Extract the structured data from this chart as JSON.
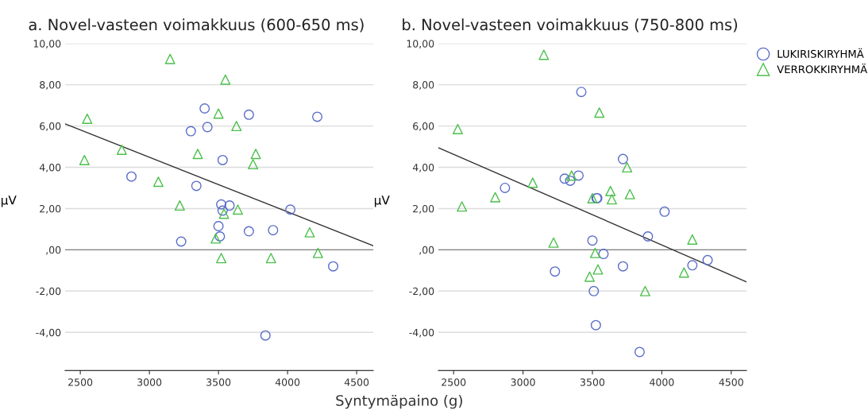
{
  "chart_data": [
    {
      "type": "scatter",
      "title": "a. Novel-vasteen voimakkuus (600-650 ms)",
      "xlabel": "Syntymäpaino (g)",
      "ylabel": "µV",
      "xlim": [
        2390,
        4620
      ],
      "xticks": [
        2500,
        3000,
        3500,
        4000,
        4500
      ],
      "ylim": [
        -5.85,
        10
      ],
      "yticks": [
        {
          "value": -4,
          "label": "-4,00"
        },
        {
          "value": -2,
          "label": "-2,00"
        },
        {
          "value": 0,
          "label": ",00"
        },
        {
          "value": 2,
          "label": "2,00"
        },
        {
          "value": 4,
          "label": "4,00"
        },
        {
          "value": 6,
          "label": "6,00"
        },
        {
          "value": 8,
          "label": "8,00"
        },
        {
          "value": 10,
          "label": "10,00"
        }
      ],
      "grid": "y",
      "ref_lines": [
        {
          "axis": "y",
          "value": 0,
          "color": "#7f7f7f"
        }
      ],
      "series": [
        {
          "color": "#5b6ec8",
          "marker": "circle",
          "x": [
            2870,
            3230,
            3300,
            3340,
            3400,
            3420,
            3500,
            3510,
            3520,
            3530,
            3530,
            3580,
            3720,
            3720,
            3895,
            4020,
            4215,
            4330,
            3840
          ],
          "values": [
            3.55,
            0.4,
            5.75,
            3.1,
            6.85,
            5.95,
            1.15,
            0.65,
            2.2,
            4.35,
            1.9,
            2.15,
            6.55,
            0.9,
            0.95,
            1.95,
            6.45,
            -0.8,
            -4.15
          ]
        },
        {
          "color": "#4cc04c",
          "marker": "triangle",
          "x": [
            2530,
            2550,
            2800,
            3065,
            3150,
            3220,
            3350,
            3480,
            3500,
            3520,
            3540,
            3550,
            3640,
            3630,
            3750,
            3770,
            3880,
            4160,
            4220
          ],
          "values": [
            4.35,
            6.35,
            4.85,
            3.3,
            9.25,
            2.15,
            4.65,
            0.55,
            6.6,
            -0.4,
            1.75,
            8.25,
            1.95,
            6.0,
            4.15,
            4.65,
            -0.4,
            0.85,
            -0.15
          ]
        },
        {
          "type": "line",
          "color": "#333333",
          "x": [
            2390,
            4620
          ],
          "values": [
            6.1,
            0.2
          ]
        }
      ]
    },
    {
      "type": "scatter",
      "title": "b. Novel-vasteen voimakkuus (750-800 ms)",
      "ylabel": "µV",
      "xlim": [
        2390,
        4610
      ],
      "xticks": [
        2500,
        3000,
        3500,
        4000,
        4500
      ],
      "ylim": [
        -5.85,
        10
      ],
      "yticks": [
        {
          "value": -4,
          "label": "-4,00"
        },
        {
          "value": -2,
          "label": "-2,00"
        },
        {
          "value": 0,
          "label": ",00"
        },
        {
          "value": 2,
          "label": "2,00"
        },
        {
          "value": 4,
          "label": "4,00"
        },
        {
          "value": 6,
          "label": "6,00"
        },
        {
          "value": 8,
          "label": "8,00"
        },
        {
          "value": 10,
          "label": "10,00"
        }
      ],
      "grid": "y",
      "legend": "top right",
      "ref_lines": [
        {
          "axis": "y",
          "value": 0,
          "color": "#7f7f7f"
        }
      ],
      "series": [
        {
          "name": "LUKIRISKIRYHMÄ",
          "color": "#5b6ec8",
          "marker": "circle",
          "x": [
            2870,
            3230,
            3300,
            3340,
            3400,
            3420,
            3500,
            3510,
            3525,
            3530,
            3535,
            3580,
            3720,
            3720,
            3900,
            4020,
            4220,
            4330,
            3840
          ],
          "values": [
            3.0,
            -1.05,
            3.45,
            3.35,
            3.6,
            7.65,
            0.45,
            -2.0,
            -3.65,
            2.5,
            2.5,
            -0.2,
            4.4,
            -0.8,
            0.65,
            1.85,
            -0.75,
            -0.5,
            -4.95
          ]
        },
        {
          "name": "VERROKKIRYHMÄ",
          "color": "#4cc04c",
          "marker": "triangle",
          "x": [
            2530,
            2560,
            2800,
            3070,
            3150,
            3220,
            3350,
            3480,
            3500,
            3520,
            3540,
            3550,
            3630,
            3640,
            3750,
            3770,
            3880,
            4160,
            4220
          ],
          "values": [
            5.85,
            2.1,
            2.55,
            3.25,
            9.45,
            0.35,
            3.6,
            -1.3,
            2.5,
            -0.15,
            -0.95,
            6.65,
            2.85,
            2.45,
            4.0,
            2.7,
            -2.0,
            -1.1,
            0.5
          ]
        },
        {
          "type": "line",
          "color": "#333333",
          "x": [
            2390,
            4610
          ],
          "values": [
            4.95,
            -1.55
          ]
        }
      ]
    }
  ]
}
